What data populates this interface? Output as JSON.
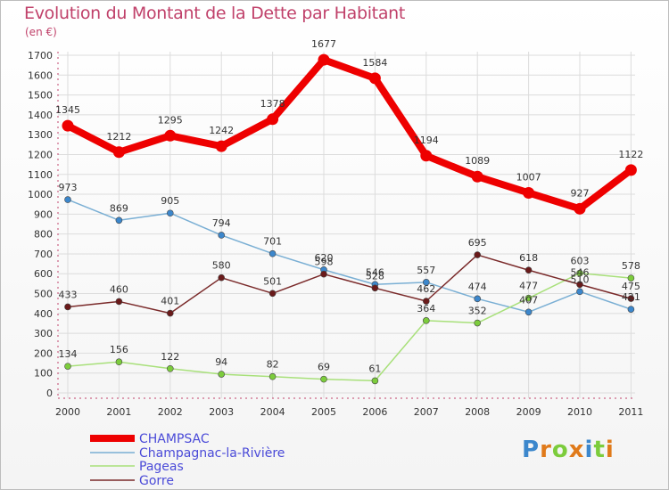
{
  "title": "Evolution du Montant de la Dette par Habitant",
  "subtitle": "(en €)",
  "logo": "Proxiti",
  "chart_data": {
    "type": "line",
    "x": [
      "2000",
      "2001",
      "2002",
      "2003",
      "2004",
      "2005",
      "2006",
      "2007",
      "2008",
      "2009",
      "2010",
      "2011"
    ],
    "ylim": [
      0,
      1700
    ],
    "yticks": [
      0,
      100,
      200,
      300,
      400,
      500,
      600,
      700,
      800,
      900,
      1000,
      1100,
      1200,
      1300,
      1400,
      1500,
      1600,
      1700
    ],
    "grid": true,
    "legend_position": "bottom-left",
    "series": [
      {
        "name": "CHAMPSAC",
        "color": "#ee0000",
        "marker_color": "#ee0000",
        "values": [
          1345,
          1212,
          1295,
          1242,
          1378,
          1677,
          1584,
          1194,
          1089,
          1007,
          927,
          1122
        ]
      },
      {
        "name": "Champagnac-la-Rivière",
        "color": "#7aafd4",
        "marker_color": "#3c87cc",
        "values": [
          973,
          869,
          905,
          794,
          701,
          620,
          546,
          557,
          474,
          407,
          510,
          421
        ]
      },
      {
        "name": "Pageas",
        "color": "#a8e07a",
        "marker_color": "#7ccc3c",
        "values": [
          134,
          156,
          122,
          94,
          82,
          69,
          61,
          364,
          352,
          477,
          603,
          578
        ]
      },
      {
        "name": "Gorre",
        "color": "#7a2a2a",
        "marker_color": "#6a1a1a",
        "values": [
          433,
          460,
          401,
          580,
          501,
          598,
          528,
          462,
          695,
          618,
          546,
          475
        ]
      }
    ]
  }
}
